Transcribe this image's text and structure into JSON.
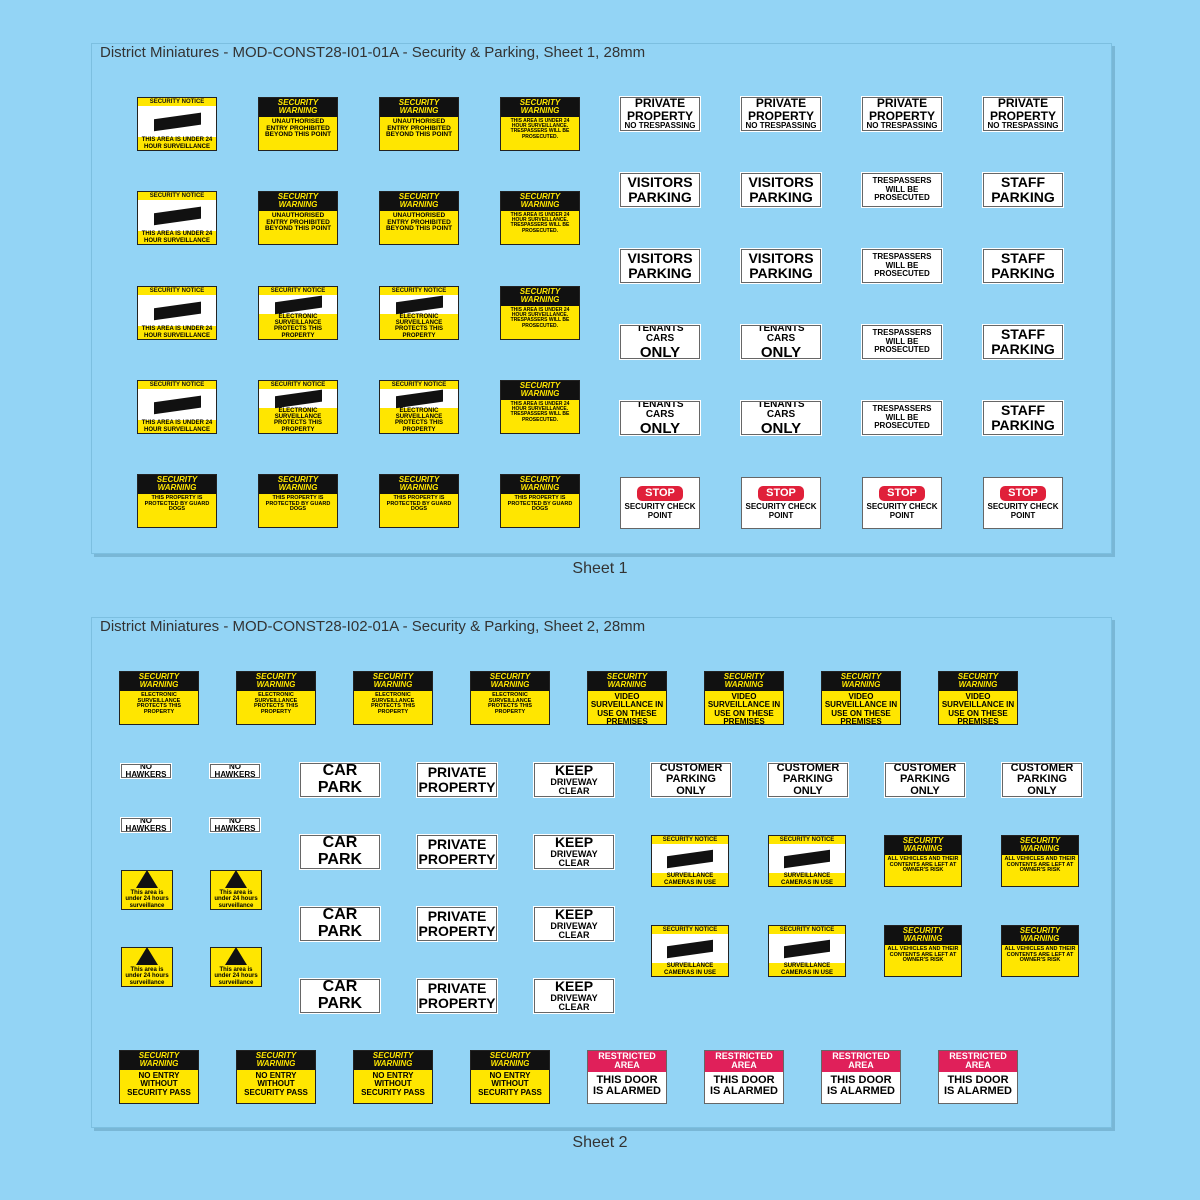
{
  "sheets": [
    {
      "title": "District Miniatures - MOD-CONST28-I01-01A - Security & Parking, Sheet 1, 28mm",
      "caption": "Sheet 1",
      "signs": [
        {
          "header": "SECURITY NOTICE",
          "text": "THIS AREA IS UNDER 24 HOUR SURVEILLANCE"
        },
        {
          "header": "SECURITY WARNING",
          "text": "UNAUTHORISED ENTRY PROHIBITED BEYOND THIS POINT"
        },
        {
          "header": "SECURITY WARNING",
          "text": "THIS AREA IS UNDER 24 HOUR SURVEILLANCE. TRESPASSERS WILL BE PROSECUTED."
        },
        {
          "text": "PRIVATE PROPERTY",
          "subtext": "NO TRESPASSING"
        },
        {
          "text": "VISITORS PARKING"
        },
        {
          "text": "TRESPASSERS WILL BE PROSECUTED"
        },
        {
          "text": "STAFF PARKING"
        },
        {
          "header": "SECURITY NOTICE",
          "text": "ELECTRONIC SURVEILLANCE PROTECTS THIS PROPERTY"
        },
        {
          "text": "TENANTS CARS",
          "subtext": "ONLY"
        },
        {
          "header": "SECURITY WARNING",
          "text": "THIS PROPERTY IS PROTECTED BY GUARD DOGS"
        },
        {
          "header": "STOP",
          "text": "SECURITY CHECK POINT"
        }
      ]
    },
    {
      "title": "District Miniatures - MOD-CONST28-I02-01A - Security & Parking, Sheet 2, 28mm",
      "caption": "Sheet 2",
      "signs": [
        {
          "header": "SECURITY WARNING",
          "text": "ELECTRONIC SURVEILLANCE PROTECTS THIS PROPERTY"
        },
        {
          "header": "SECURITY WARNING",
          "text": "VIDEO SURVEILLANCE IN USE ON THESE PREMISES"
        },
        {
          "text": "NO HAWKERS"
        },
        {
          "text": "CAR PARK"
        },
        {
          "text": "PRIVATE PROPERTY"
        },
        {
          "text": "KEEP",
          "subtext": "DRIVEWAY CLEAR"
        },
        {
          "text": "CUSTOMER PARKING ONLY"
        },
        {
          "text": "This area is under 24 hours surveillance"
        },
        {
          "header": "SECURITY NOTICE",
          "text": "SURVEILLANCE CAMERAS IN USE"
        },
        {
          "header": "SECURITY WARNING",
          "text": "ALL VEHICLES AND THEIR CONTENTS ARE LEFT AT OWNER'S RISK"
        },
        {
          "header": "SECURITY WARNING",
          "text": "NO ENTRY WITHOUT SECURITY PASS"
        },
        {
          "header": "RESTRICTED AREA",
          "text": "THIS DOOR IS ALARMED"
        }
      ]
    }
  ]
}
